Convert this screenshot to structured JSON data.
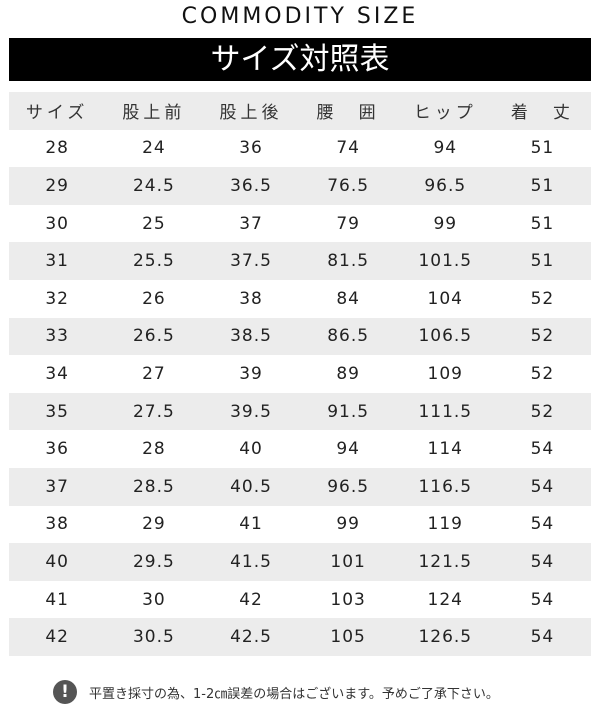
{
  "title": "COMMODITY SIZE",
  "banner": "サイズ対照表",
  "table": {
    "headers": [
      "サイズ",
      "股上前",
      "股上後",
      "腰　囲",
      "ヒップ",
      "着　丈"
    ],
    "rows": [
      [
        "28",
        "24",
        "36",
        "74",
        "94",
        "51"
      ],
      [
        "29",
        "24.5",
        "36.5",
        "76.5",
        "96.5",
        "51"
      ],
      [
        "30",
        "25",
        "37",
        "79",
        "99",
        "51"
      ],
      [
        "31",
        "25.5",
        "37.5",
        "81.5",
        "101.5",
        "51"
      ],
      [
        "32",
        "26",
        "38",
        "84",
        "104",
        "52"
      ],
      [
        "33",
        "26.5",
        "38.5",
        "86.5",
        "106.5",
        "52"
      ],
      [
        "34",
        "27",
        "39",
        "89",
        "109",
        "52"
      ],
      [
        "35",
        "27.5",
        "39.5",
        "91.5",
        "111.5",
        "52"
      ],
      [
        "36",
        "28",
        "40",
        "94",
        "114",
        "54"
      ],
      [
        "37",
        "28.5",
        "40.5",
        "96.5",
        "116.5",
        "54"
      ],
      [
        "38",
        "29",
        "41",
        "99",
        "119",
        "54"
      ],
      [
        "40",
        "29.5",
        "41.5",
        "101",
        "121.5",
        "54"
      ],
      [
        "41",
        "30",
        "42",
        "103",
        "124",
        "54"
      ],
      [
        "42",
        "30.5",
        "42.5",
        "105",
        "126.5",
        "54"
      ]
    ]
  },
  "note": {
    "icon": "exclamation-icon",
    "text": "平置き採寸の為、1-2㎝誤差の場合はございます。予めご了承下さい。"
  }
}
